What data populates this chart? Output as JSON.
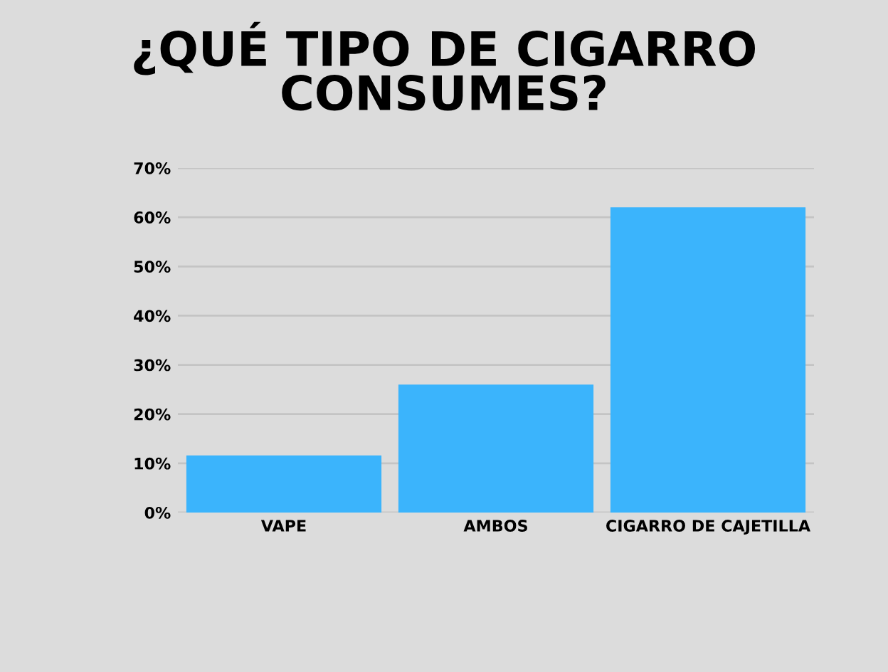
{
  "chart_data": {
    "type": "bar",
    "title": "¿QUÉ TIPO DE CIGARRO\nCONSUMES?",
    "categories": [
      "VAPE",
      "AMBOS",
      "CIGARRO DE CAJETILLA"
    ],
    "values": [
      11.6,
      26,
      62
    ],
    "color": "#3bb4fc",
    "ylim": [
      0,
      70
    ],
    "yticks": [
      {
        "value": 0,
        "label": "0%"
      },
      {
        "value": 10,
        "label": "10%"
      },
      {
        "value": 20,
        "label": "20%"
      },
      {
        "value": 30,
        "label": "30%"
      },
      {
        "value": 40,
        "label": "40%"
      },
      {
        "value": 50,
        "label": "50%"
      },
      {
        "value": 60,
        "label": "60%"
      },
      {
        "value": 70,
        "label": "70%"
      }
    ],
    "grid": "y"
  }
}
